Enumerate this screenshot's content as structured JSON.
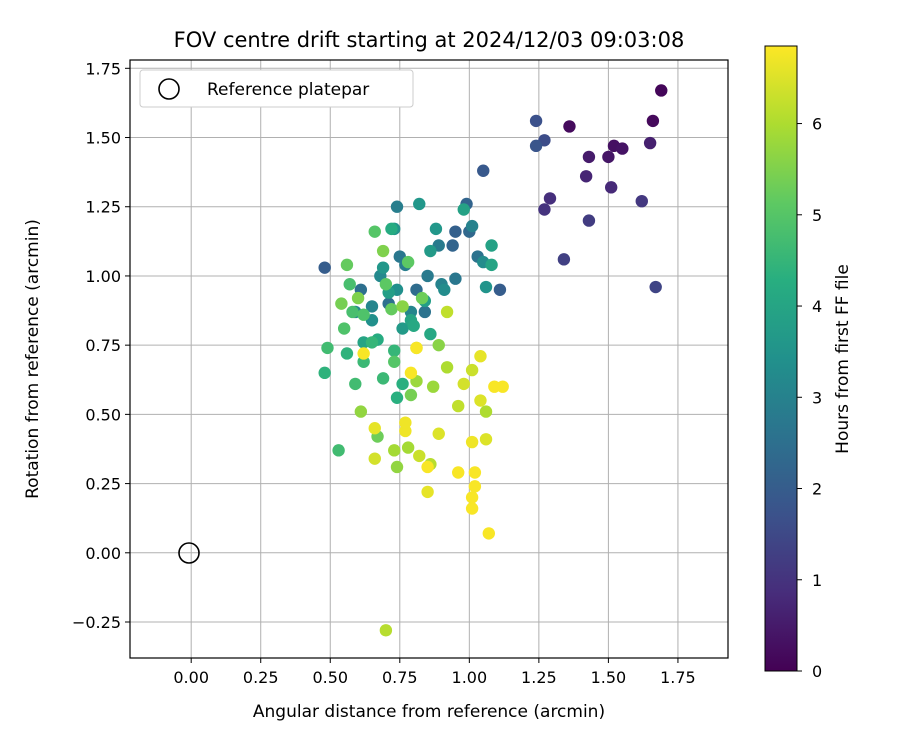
{
  "chart_data": {
    "type": "scatter",
    "title": "FOV centre drift starting at 2024/12/03 09:03:08",
    "xlabel": "Angular distance from reference (arcmin)",
    "ylabel": "Rotation from reference (arcmin)",
    "xlim": [
      -0.22,
      1.93
    ],
    "ylim": [
      -0.38,
      1.78
    ],
    "x_ticks": [
      0.0,
      0.25,
      0.5,
      0.75,
      1.0,
      1.25,
      1.5,
      1.75
    ],
    "x_tick_labels": [
      "0.00",
      "0.25",
      "0.50",
      "0.75",
      "1.00",
      "1.25",
      "1.50",
      "1.75"
    ],
    "y_ticks": [
      -0.25,
      0.0,
      0.25,
      0.5,
      0.75,
      1.0,
      1.25,
      1.5,
      1.75
    ],
    "y_tick_labels": [
      "−0.25",
      "0.00",
      "0.25",
      "0.50",
      "0.75",
      "1.00",
      "1.25",
      "1.50",
      "1.75"
    ],
    "grid": true,
    "legend": {
      "position": "top-left",
      "entries": [
        "Reference platepar"
      ]
    },
    "reference_point": {
      "x": 0.0,
      "y": 0.0
    },
    "colorbar": {
      "label": "Hours from first FF file",
      "range": [
        0,
        6.85
      ],
      "ticks": [
        0,
        1,
        2,
        3,
        4,
        5,
        6
      ],
      "tick_labels": [
        "0",
        "1",
        "2",
        "3",
        "4",
        "5",
        "6"
      ],
      "colormap": "viridis"
    },
    "points": [
      {
        "x": 1.69,
        "y": 1.67,
        "c": 0.1
      },
      {
        "x": 1.66,
        "y": 1.56,
        "c": 0.15
      },
      {
        "x": 1.36,
        "y": 1.54,
        "c": 0.2
      },
      {
        "x": 1.52,
        "y": 1.47,
        "c": 0.3
      },
      {
        "x": 1.55,
        "y": 1.46,
        "c": 0.35
      },
      {
        "x": 1.5,
        "y": 1.43,
        "c": 0.4
      },
      {
        "x": 1.43,
        "y": 1.43,
        "c": 0.5
      },
      {
        "x": 1.65,
        "y": 1.48,
        "c": 0.6
      },
      {
        "x": 1.42,
        "y": 1.36,
        "c": 0.7
      },
      {
        "x": 1.51,
        "y": 1.32,
        "c": 0.8
      },
      {
        "x": 1.29,
        "y": 1.28,
        "c": 0.9
      },
      {
        "x": 1.27,
        "y": 1.24,
        "c": 1.0
      },
      {
        "x": 1.62,
        "y": 1.27,
        "c": 1.1
      },
      {
        "x": 1.43,
        "y": 1.2,
        "c": 1.2
      },
      {
        "x": 1.34,
        "y": 1.06,
        "c": 1.3
      },
      {
        "x": 1.67,
        "y": 0.96,
        "c": 1.4
      },
      {
        "x": 1.27,
        "y": 1.49,
        "c": 1.6
      },
      {
        "x": 1.24,
        "y": 1.56,
        "c": 1.7
      },
      {
        "x": 1.24,
        "y": 1.47,
        "c": 1.8
      },
      {
        "x": 1.05,
        "y": 1.38,
        "c": 1.9
      },
      {
        "x": 0.48,
        "y": 1.03,
        "c": 2.0
      },
      {
        "x": 1.11,
        "y": 0.95,
        "c": 2.0
      },
      {
        "x": 0.95,
        "y": 1.16,
        "c": 2.1
      },
      {
        "x": 0.99,
        "y": 1.26,
        "c": 2.2
      },
      {
        "x": 0.94,
        "y": 1.11,
        "c": 2.2
      },
      {
        "x": 1.0,
        "y": 1.16,
        "c": 2.3
      },
      {
        "x": 0.81,
        "y": 0.95,
        "c": 2.4
      },
      {
        "x": 0.61,
        "y": 0.95,
        "c": 2.5
      },
      {
        "x": 0.71,
        "y": 0.9,
        "c": 2.5
      },
      {
        "x": 1.03,
        "y": 1.07,
        "c": 2.6
      },
      {
        "x": 0.84,
        "y": 0.87,
        "c": 2.6
      },
      {
        "x": 0.75,
        "y": 1.07,
        "c": 2.7
      },
      {
        "x": 0.95,
        "y": 0.99,
        "c": 2.7
      },
      {
        "x": 0.85,
        "y": 1.0,
        "c": 2.8
      },
      {
        "x": 0.89,
        "y": 1.11,
        "c": 2.8
      },
      {
        "x": 0.74,
        "y": 1.25,
        "c": 2.9
      },
      {
        "x": 0.77,
        "y": 1.04,
        "c": 2.9
      },
      {
        "x": 1.01,
        "y": 1.18,
        "c": 3.0
      },
      {
        "x": 0.9,
        "y": 0.97,
        "c": 3.0
      },
      {
        "x": 0.65,
        "y": 0.89,
        "c": 3.1
      },
      {
        "x": 0.79,
        "y": 0.87,
        "c": 3.1
      },
      {
        "x": 0.59,
        "y": 0.87,
        "c": 3.2
      },
      {
        "x": 0.68,
        "y": 1.0,
        "c": 3.2
      },
      {
        "x": 1.05,
        "y": 1.05,
        "c": 3.3
      },
      {
        "x": 0.91,
        "y": 0.95,
        "c": 3.3
      },
      {
        "x": 0.65,
        "y": 0.84,
        "c": 3.4
      },
      {
        "x": 0.74,
        "y": 0.95,
        "c": 3.4
      },
      {
        "x": 1.06,
        "y": 0.96,
        "c": 3.5
      },
      {
        "x": 0.73,
        "y": 1.17,
        "c": 3.5
      },
      {
        "x": 0.88,
        "y": 1.17,
        "c": 3.6
      },
      {
        "x": 0.69,
        "y": 1.03,
        "c": 3.6
      },
      {
        "x": 0.82,
        "y": 1.26,
        "c": 3.6
      },
      {
        "x": 0.86,
        "y": 1.09,
        "c": 3.7
      },
      {
        "x": 0.76,
        "y": 0.81,
        "c": 3.7
      },
      {
        "x": 0.84,
        "y": 0.91,
        "c": 3.8
      },
      {
        "x": 0.71,
        "y": 0.94,
        "c": 3.8
      },
      {
        "x": 1.08,
        "y": 1.11,
        "c": 3.9
      },
      {
        "x": 0.98,
        "y": 1.24,
        "c": 3.9
      },
      {
        "x": 0.79,
        "y": 0.84,
        "c": 4.0
      },
      {
        "x": 0.62,
        "y": 0.76,
        "c": 4.0
      },
      {
        "x": 1.08,
        "y": 1.04,
        "c": 4.0
      },
      {
        "x": 0.86,
        "y": 0.79,
        "c": 4.1
      },
      {
        "x": 0.8,
        "y": 0.82,
        "c": 4.1
      },
      {
        "x": 0.72,
        "y": 1.17,
        "c": 4.2
      },
      {
        "x": 0.67,
        "y": 0.77,
        "c": 4.2
      },
      {
        "x": 0.76,
        "y": 0.61,
        "c": 4.3
      },
      {
        "x": 0.74,
        "y": 0.56,
        "c": 4.3
      },
      {
        "x": 0.48,
        "y": 0.65,
        "c": 4.4
      },
      {
        "x": 0.56,
        "y": 0.72,
        "c": 4.4
      },
      {
        "x": 0.65,
        "y": 0.76,
        "c": 4.5
      },
      {
        "x": 0.73,
        "y": 0.73,
        "c": 4.5
      },
      {
        "x": 0.62,
        "y": 0.69,
        "c": 4.6
      },
      {
        "x": 0.69,
        "y": 0.63,
        "c": 4.6
      },
      {
        "x": 0.49,
        "y": 0.74,
        "c": 4.7
      },
      {
        "x": 0.59,
        "y": 0.61,
        "c": 4.7
      },
      {
        "x": 0.53,
        "y": 0.37,
        "c": 4.7
      },
      {
        "x": 0.57,
        "y": 0.97,
        "c": 4.8
      },
      {
        "x": 0.58,
        "y": 0.87,
        "c": 4.8
      },
      {
        "x": 0.55,
        "y": 0.81,
        "c": 4.9
      },
      {
        "x": 0.62,
        "y": 0.86,
        "c": 4.9
      },
      {
        "x": 0.73,
        "y": 0.69,
        "c": 5.0
      },
      {
        "x": 0.66,
        "y": 1.16,
        "c": 5.0
      },
      {
        "x": 0.7,
        "y": 0.97,
        "c": 5.1
      },
      {
        "x": 0.78,
        "y": 1.05,
        "c": 5.1
      },
      {
        "x": 0.56,
        "y": 1.04,
        "c": 5.2
      },
      {
        "x": 0.72,
        "y": 0.88,
        "c": 5.2
      },
      {
        "x": 0.83,
        "y": 0.92,
        "c": 5.3
      },
      {
        "x": 0.67,
        "y": 0.42,
        "c": 5.3
      },
      {
        "x": 0.79,
        "y": 0.57,
        "c": 5.4
      },
      {
        "x": 0.54,
        "y": 0.9,
        "c": 5.4
      },
      {
        "x": 0.6,
        "y": 0.92,
        "c": 5.5
      },
      {
        "x": 0.69,
        "y": 1.09,
        "c": 5.5
      },
      {
        "x": 0.89,
        "y": 0.75,
        "c": 5.6
      },
      {
        "x": 0.76,
        "y": 0.89,
        "c": 5.6
      },
      {
        "x": 0.61,
        "y": 0.51,
        "c": 5.7
      },
      {
        "x": 0.74,
        "y": 0.31,
        "c": 5.7
      },
      {
        "x": 0.81,
        "y": 0.62,
        "c": 5.8
      },
      {
        "x": 0.87,
        "y": 0.6,
        "c": 5.8
      },
      {
        "x": 0.73,
        "y": 0.37,
        "c": 5.9
      },
      {
        "x": 0.78,
        "y": 0.38,
        "c": 5.9
      },
      {
        "x": 0.92,
        "y": 0.67,
        "c": 6.0
      },
      {
        "x": 1.06,
        "y": 0.51,
        "c": 6.0
      },
      {
        "x": 0.81,
        "y": 0.74,
        "c": 6.0
      },
      {
        "x": 0.86,
        "y": 0.32,
        "c": 6.1
      },
      {
        "x": 0.7,
        "y": -0.28,
        "c": 6.1
      },
      {
        "x": 0.96,
        "y": 0.53,
        "c": 6.2
      },
      {
        "x": 0.92,
        "y": 0.87,
        "c": 6.2
      },
      {
        "x": 1.01,
        "y": 0.66,
        "c": 6.3
      },
      {
        "x": 0.82,
        "y": 0.35,
        "c": 6.3
      },
      {
        "x": 0.66,
        "y": 0.34,
        "c": 6.4
      },
      {
        "x": 0.98,
        "y": 0.61,
        "c": 6.4
      },
      {
        "x": 1.04,
        "y": 0.55,
        "c": 6.5
      },
      {
        "x": 0.89,
        "y": 0.43,
        "c": 6.5
      },
      {
        "x": 1.06,
        "y": 0.41,
        "c": 6.5
      },
      {
        "x": 0.66,
        "y": 0.45,
        "c": 6.6
      },
      {
        "x": 0.85,
        "y": 0.22,
        "c": 6.6
      },
      {
        "x": 1.04,
        "y": 0.71,
        "c": 6.6
      },
      {
        "x": 0.77,
        "y": 0.44,
        "c": 6.7
      },
      {
        "x": 1.01,
        "y": 0.4,
        "c": 6.7
      },
      {
        "x": 0.77,
        "y": 0.47,
        "c": 6.7
      },
      {
        "x": 0.96,
        "y": 0.29,
        "c": 6.8
      },
      {
        "x": 1.01,
        "y": 0.16,
        "c": 6.8
      },
      {
        "x": 1.02,
        "y": 0.29,
        "c": 6.8
      },
      {
        "x": 1.02,
        "y": 0.24,
        "c": 6.8
      },
      {
        "x": 1.01,
        "y": 0.2,
        "c": 6.8
      },
      {
        "x": 1.07,
        "y": 0.07,
        "c": 6.8
      },
      {
        "x": 0.85,
        "y": 0.31,
        "c": 6.8
      },
      {
        "x": 1.09,
        "y": 0.6,
        "c": 6.8
      },
      {
        "x": 1.12,
        "y": 0.6,
        "c": 6.8
      },
      {
        "x": 0.62,
        "y": 0.72,
        "c": 6.8
      },
      {
        "x": 0.79,
        "y": 0.65,
        "c": 6.8
      },
      {
        "x": 0.81,
        "y": 0.74,
        "c": 6.8
      }
    ]
  }
}
